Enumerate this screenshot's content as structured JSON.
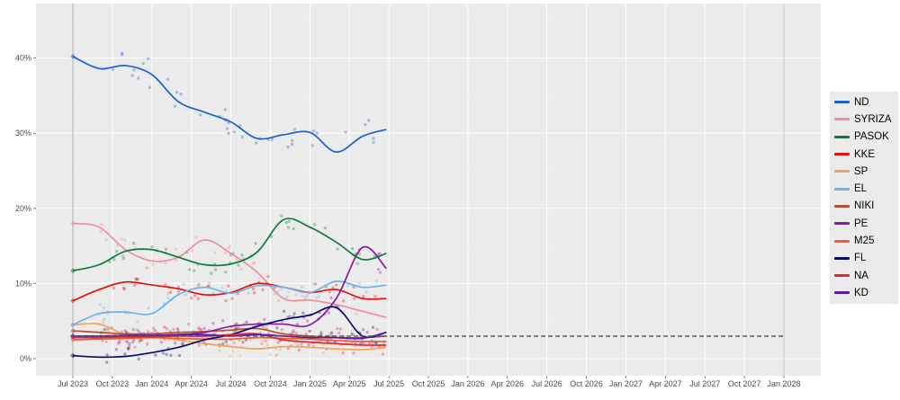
{
  "chart_data": {
    "type": "line",
    "title": "",
    "xlabel": "",
    "ylabel": "",
    "ylim": [
      -2,
      47
    ],
    "xlim": [
      "2023-05",
      "2028-02"
    ],
    "grid": true,
    "legend_position": "right",
    "y_ticks": [
      "0%",
      "10%",
      "20%",
      "30%",
      "40%"
    ],
    "y_tick_values": [
      0,
      10,
      20,
      30,
      40
    ],
    "x_ticks": [
      "Jul 2023",
      "Oct 2023",
      "Jan 2024",
      "Apr 2024",
      "Jul 2024",
      "Oct 2024",
      "Jan 2025",
      "Apr 2025",
      "Jul 2025",
      "Oct 2025",
      "Jan 2026",
      "Apr 2026",
      "Jul 2026",
      "Oct 2026",
      "Jan 2027",
      "Apr 2027",
      "Jul 2027",
      "Oct 2027",
      "Jan 2028"
    ],
    "threshold": {
      "value": 3,
      "from": "2023-07",
      "to": "2028-01",
      "style": "dashed"
    },
    "x": [
      "2023-07",
      "2023-09",
      "2023-11",
      "2024-01",
      "2024-03",
      "2024-05",
      "2024-07",
      "2024-09",
      "2024-11",
      "2025-01",
      "2025-03",
      "2025-05",
      "2025-07"
    ],
    "series": [
      {
        "name": "ND",
        "color": "#1f5fcf",
        "values": [
          40.2,
          38.6,
          39.0,
          37.8,
          34.2,
          32.8,
          31.5,
          29.3,
          29.8,
          30.1,
          27.5,
          29.6,
          30.5
        ]
      },
      {
        "name": "SYRIZA",
        "color": "#f08c9c",
        "values": [
          18.0,
          17.5,
          14.5,
          13.0,
          13.5,
          15.8,
          14.0,
          11.5,
          8.0,
          7.8,
          7.2,
          6.3,
          5.5
        ]
      },
      {
        "name": "PASOK",
        "color": "#0b7a3e",
        "values": [
          11.7,
          12.5,
          14.3,
          14.5,
          13.5,
          12.5,
          12.6,
          14.2,
          18.5,
          17.5,
          15.5,
          13.2,
          14.0
        ]
      },
      {
        "name": "KKE",
        "color": "#e3120b",
        "values": [
          7.7,
          9.2,
          10.2,
          9.8,
          9.3,
          8.5,
          8.8,
          10.0,
          9.5,
          8.8,
          9.2,
          8.0,
          8.0
        ]
      },
      {
        "name": "SP",
        "color": "#f0a35a",
        "values": [
          4.5,
          4.6,
          3.2,
          3.0,
          2.5,
          2.0,
          1.6,
          1.3,
          1.6,
          1.5,
          1.3,
          1.2,
          1.5
        ]
      },
      {
        "name": "EL",
        "color": "#6fb1ea",
        "values": [
          4.5,
          6.0,
          6.2,
          6.0,
          8.5,
          9.5,
          8.7,
          9.7,
          9.5,
          8.8,
          10.3,
          9.5,
          9.8
        ]
      },
      {
        "name": "NIKI",
        "color": "#b5502a",
        "values": [
          3.7,
          3.5,
          3.3,
          3.3,
          3.5,
          3.6,
          3.8,
          4.0,
          3.3,
          3.0,
          2.8,
          2.8,
          3.0
        ]
      },
      {
        "name": "PE",
        "color": "#8b1a9a",
        "values": [
          3.0,
          3.0,
          3.0,
          3.0,
          3.2,
          3.5,
          4.3,
          4.6,
          4.6,
          4.5,
          8.0,
          14.8,
          12.0
        ]
      },
      {
        "name": "M25",
        "color": "#ef5a35",
        "values": [
          2.5,
          2.6,
          2.7,
          2.8,
          2.7,
          2.6,
          2.6,
          2.8,
          2.7,
          2.6,
          2.4,
          2.3,
          2.3
        ]
      },
      {
        "name": "FL",
        "color": "#0a0a6e",
        "values": [
          0.4,
          0.2,
          0.3,
          0.8,
          1.5,
          2.5,
          3.2,
          4.3,
          5.2,
          5.8,
          6.8,
          3.0,
          3.5
        ]
      },
      {
        "name": "NA",
        "color": "#e8262e",
        "values": [
          2.8,
          2.8,
          2.9,
          2.9,
          3.0,
          3.0,
          3.2,
          3.3,
          2.5,
          2.2,
          2.0,
          1.8,
          1.8
        ]
      },
      {
        "name": "KD",
        "color": "#5a1aa8",
        "values": [
          3.0,
          3.0,
          3.1,
          3.1,
          3.2,
          3.2,
          3.0,
          3.2,
          3.0,
          2.8,
          2.8,
          2.7,
          3.5
        ]
      }
    ]
  }
}
